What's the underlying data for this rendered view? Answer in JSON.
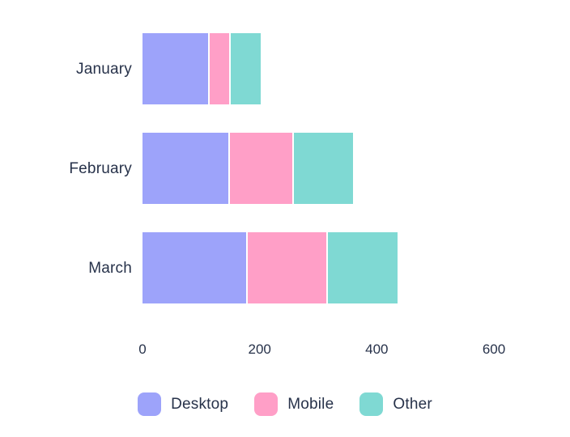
{
  "chart_data": {
    "type": "bar",
    "orientation": "horizontal",
    "stacked": true,
    "title": "",
    "xlabel": "",
    "ylabel": "",
    "categories": [
      "January",
      "February",
      "March"
    ],
    "series": [
      {
        "name": "Desktop",
        "color": "#9da3fa",
        "values": [
          115,
          149,
          180
        ]
      },
      {
        "name": "Mobile",
        "color": "#ff9fc7",
        "values": [
          36,
          110,
          137
        ]
      },
      {
        "name": "Other",
        "color": "#7fd9d3",
        "values": [
          51,
          101,
          119
        ]
      }
    ],
    "xlim": [
      0,
      600
    ],
    "x_ticks": [
      0,
      200,
      400,
      600
    ],
    "grid": false,
    "axis_lines": false,
    "legend_position": "bottom",
    "segment_separator_color": "#ffffff",
    "text_color": "#27324a",
    "background_color": "#ffffff"
  },
  "legend": {
    "items": [
      {
        "label": "Desktop",
        "color": "#9da3fa"
      },
      {
        "label": "Mobile",
        "color": "#ff9fc7"
      },
      {
        "label": "Other",
        "color": "#7fd9d3"
      }
    ]
  }
}
